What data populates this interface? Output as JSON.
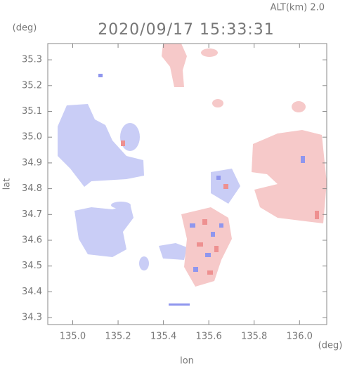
{
  "chart_data": {
    "type": "map",
    "title": "2020/09/17 15:33:31",
    "subtitle": "ALT(km) 2.0",
    "x_label": "lon",
    "y_label": "lat",
    "x_unit": "(deg)",
    "y_unit": "(deg)",
    "xlim": [
      134.89,
      136.12
    ],
    "ylim": [
      34.273,
      35.363
    ],
    "xticks": [
      {
        "value": 135,
        "label": "135.0"
      },
      135.2,
      135.4,
      135.6,
      135.8,
      {
        "value": 136,
        "label": "136.0"
      }
    ],
    "yticks": [
      34.3,
      34.4,
      34.5,
      34.6,
      34.7,
      34.8,
      34.9,
      {
        "value": 35,
        "label": "35.0"
      },
      35.1,
      35.2,
      35.3
    ]
  }
}
